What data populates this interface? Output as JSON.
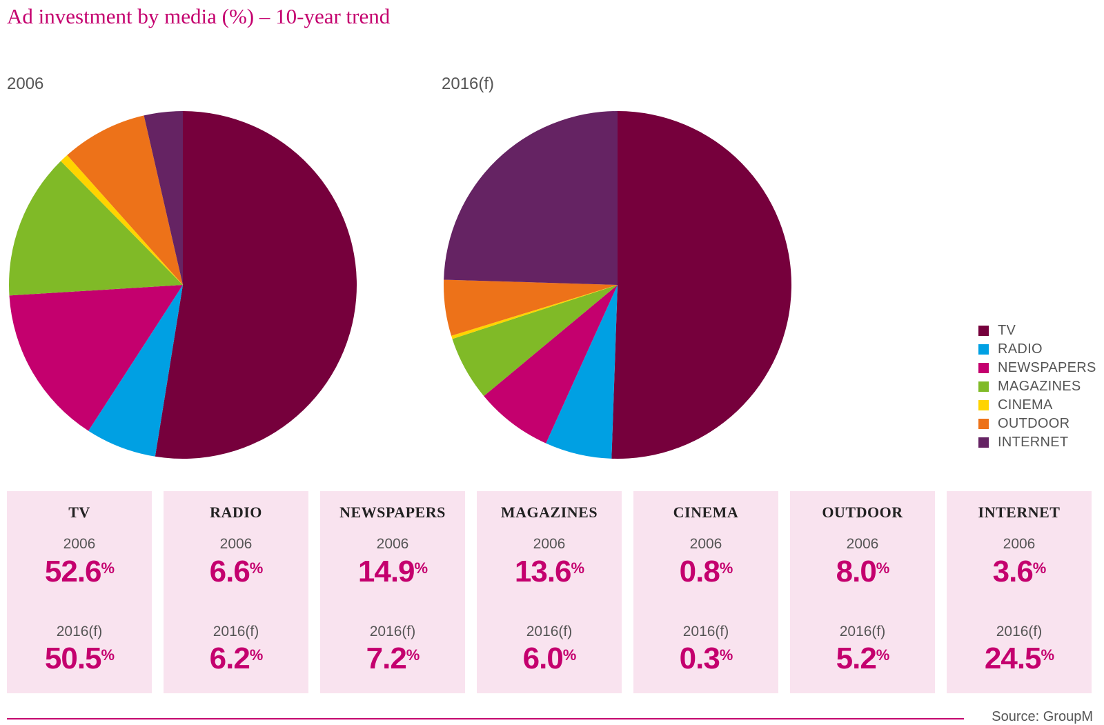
{
  "title": "Ad investment by media (%) – 10-year trend",
  "source": "Source: GroupM",
  "chart_data": [
    {
      "type": "pie",
      "title": "2006",
      "categories": [
        "TV",
        "RADIO",
        "NEWSPAPERS",
        "MAGAZINES",
        "CINEMA",
        "OUTDOOR",
        "INTERNET"
      ],
      "values": [
        52.6,
        6.6,
        14.9,
        13.6,
        0.8,
        8.0,
        3.6
      ],
      "colors": [
        "#76003c",
        "#00a0e3",
        "#c4006e",
        "#80ba27",
        "#ffd400",
        "#ed7219",
        "#652363"
      ]
    },
    {
      "type": "pie",
      "title": "2016(f)",
      "categories": [
        "TV",
        "RADIO",
        "NEWSPAPERS",
        "MAGAZINES",
        "CINEMA",
        "OUTDOOR",
        "INTERNET"
      ],
      "values": [
        50.5,
        6.2,
        7.2,
        6.0,
        0.3,
        5.2,
        24.5
      ],
      "colors": [
        "#76003c",
        "#00a0e3",
        "#c4006e",
        "#80ba27",
        "#ffd400",
        "#ed7219",
        "#652363"
      ]
    }
  ],
  "legend": [
    {
      "label": "TV",
      "color": "#76003c"
    },
    {
      "label": "RADIO",
      "color": "#00a0e3"
    },
    {
      "label": "NEWSPAPERS",
      "color": "#c4006e"
    },
    {
      "label": "MAGAZINES",
      "color": "#80ba27"
    },
    {
      "label": "CINEMA",
      "color": "#ffd400"
    },
    {
      "label": "OUTDOOR",
      "color": "#ed7219"
    },
    {
      "label": "INTERNET",
      "color": "#652363"
    }
  ],
  "cards": [
    {
      "name": "TV",
      "year1": "2006",
      "value1": "52.6",
      "year2": "2016(f)",
      "value2": "50.5"
    },
    {
      "name": "RADIO",
      "year1": "2006",
      "value1": "6.6",
      "year2": "2016(f)",
      "value2": "6.2"
    },
    {
      "name": "NEWSPAPERS",
      "year1": "2006",
      "value1": "14.9",
      "year2": "2016(f)",
      "value2": "7.2"
    },
    {
      "name": "MAGAZINES",
      "year1": "2006",
      "value1": "13.6",
      "year2": "2016(f)",
      "value2": "6.0"
    },
    {
      "name": "CINEMA",
      "year1": "2006",
      "value1": "0.8",
      "year2": "2016(f)",
      "value2": "0.3"
    },
    {
      "name": "OUTDOOR",
      "year1": "2006",
      "value1": "8.0",
      "year2": "2016(f)",
      "value2": "5.2"
    },
    {
      "name": "INTERNET",
      "year1": "2006",
      "value1": "3.6",
      "year2": "2016(f)",
      "value2": "24.5"
    }
  ],
  "percent_symbol": "%"
}
